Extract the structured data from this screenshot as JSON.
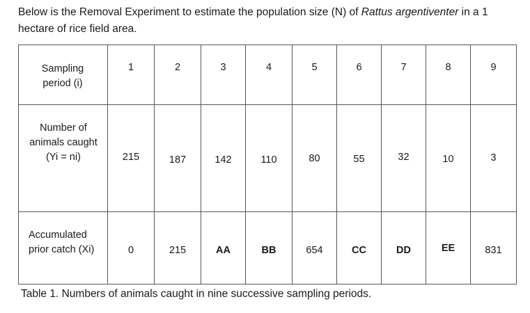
{
  "intro": {
    "text_before": "Below is the Removal Experiment to estimate the population size (N) of ",
    "species": "Rattus argentiventer",
    "text_after": " in a 1 hectare of rice field area."
  },
  "table": {
    "header": {
      "label": "Sampling period (i)",
      "values": [
        "1",
        "2",
        "3",
        "4",
        "5",
        "6",
        "7",
        "8",
        "9"
      ]
    },
    "caught": {
      "label": "Number of animals caught (Yi = ni)",
      "values": [
        "215",
        "187",
        "142",
        "110",
        "80",
        "55",
        "32",
        "10",
        "3"
      ]
    },
    "accumulated": {
      "label": "Accumulated prior catch (Xi)",
      "values": [
        "0",
        "215",
        "AA",
        "BB",
        "654",
        "CC",
        "DD",
        "EE",
        "831"
      ]
    }
  },
  "caption": "Table 1. Numbers of animals caught in nine successive sampling periods."
}
